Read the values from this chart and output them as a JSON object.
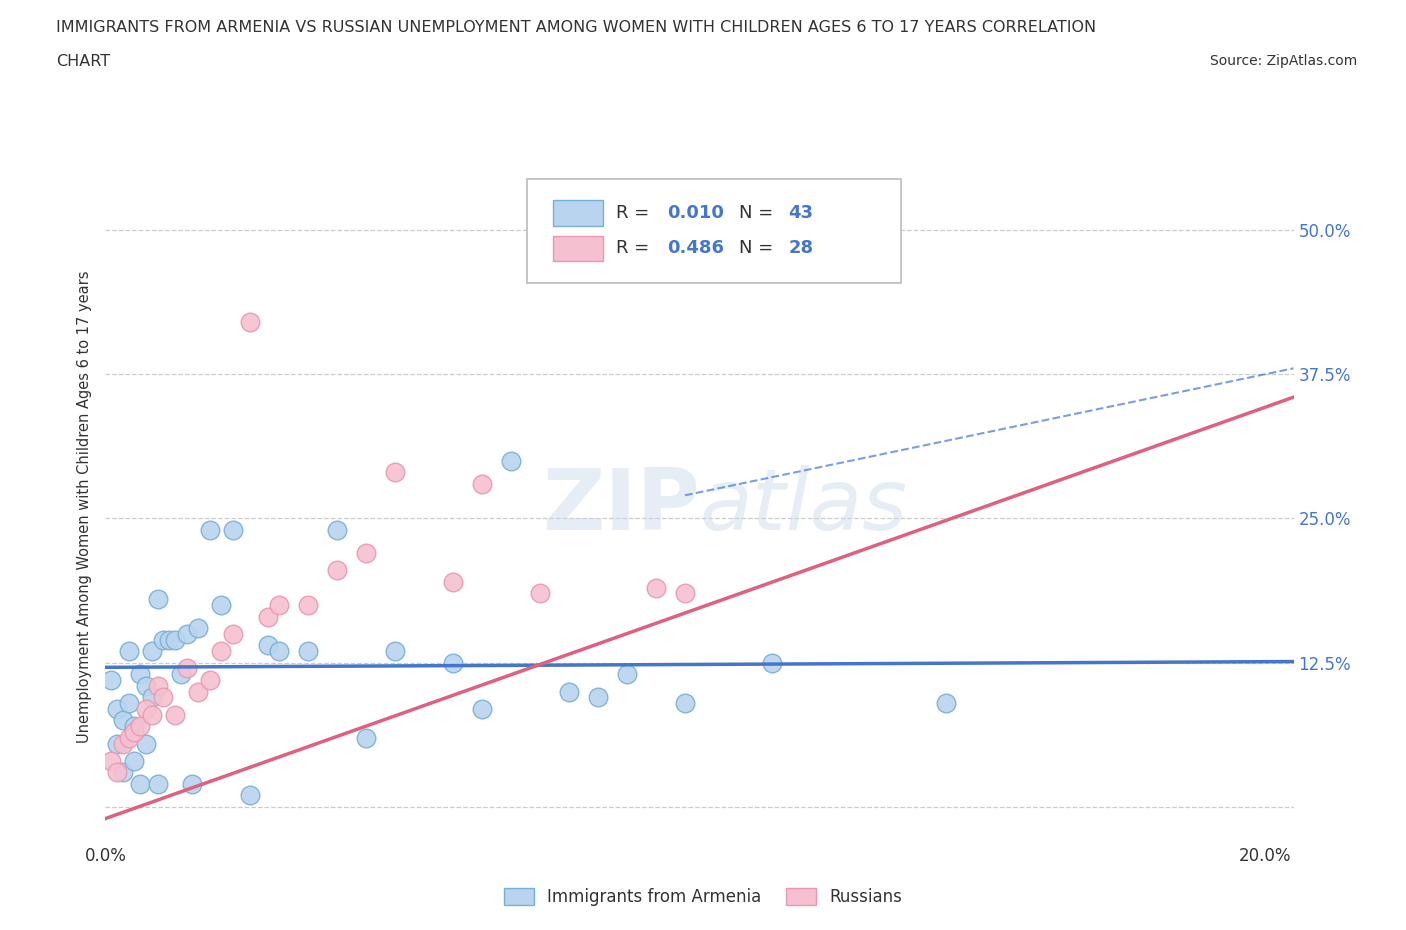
{
  "title_line1": "IMMIGRANTS FROM ARMENIA VS RUSSIAN UNEMPLOYMENT AMONG WOMEN WITH CHILDREN AGES 6 TO 17 YEARS CORRELATION",
  "title_line2": "CHART",
  "source": "Source: ZipAtlas.com",
  "ylabel": "Unemployment Among Women with Children Ages 6 to 17 years",
  "xlim": [
    0.0,
    0.205
  ],
  "ylim": [
    -0.03,
    0.55
  ],
  "xtick_positions": [
    0.0,
    0.025,
    0.05,
    0.075,
    0.1,
    0.125,
    0.15,
    0.175,
    0.2
  ],
  "xtick_labels": [
    "0.0%",
    "",
    "",
    "",
    "",
    "",
    "",
    "",
    "20.0%"
  ],
  "ytick_positions": [
    0.0,
    0.125,
    0.25,
    0.375,
    0.5
  ],
  "ytick_labels_right": [
    "",
    "12.5%",
    "25.0%",
    "37.5%",
    "50.0%"
  ],
  "grid_color": "#cccccc",
  "background_color": "#ffffff",
  "armenia_face_color": "#b8d4ee",
  "armenia_edge_color": "#7aafd4",
  "russia_face_color": "#f5c0d0",
  "russia_edge_color": "#e898b0",
  "armenia_line_color": "#4477cc",
  "russia_line_color": "#e06080",
  "armenia_R": "0.010",
  "armenia_N": 43,
  "russia_R": "0.486",
  "russia_N": 28,
  "text_color": "#333333",
  "blue_text_color": "#4477cc",
  "watermark_color": "#d0dce8",
  "armenia_line_y0": 0.121,
  "armenia_line_y1": 0.126,
  "russia_line_y0": -0.01,
  "russia_line_y1": 0.355,
  "armenia_x": [
    0.001,
    0.002,
    0.002,
    0.003,
    0.003,
    0.004,
    0.004,
    0.005,
    0.005,
    0.006,
    0.006,
    0.007,
    0.007,
    0.008,
    0.008,
    0.009,
    0.009,
    0.01,
    0.011,
    0.012,
    0.013,
    0.014,
    0.015,
    0.016,
    0.018,
    0.02,
    0.022,
    0.025,
    0.028,
    0.03,
    0.035,
    0.04,
    0.045,
    0.05,
    0.06,
    0.065,
    0.07,
    0.08,
    0.085,
    0.09,
    0.1,
    0.115,
    0.145
  ],
  "armenia_y": [
    0.11,
    0.055,
    0.085,
    0.03,
    0.075,
    0.09,
    0.135,
    0.04,
    0.07,
    0.02,
    0.115,
    0.105,
    0.055,
    0.095,
    0.135,
    0.18,
    0.02,
    0.145,
    0.145,
    0.145,
    0.115,
    0.15,
    0.02,
    0.155,
    0.24,
    0.175,
    0.24,
    0.01,
    0.14,
    0.135,
    0.135,
    0.24,
    0.06,
    0.135,
    0.125,
    0.085,
    0.3,
    0.1,
    0.095,
    0.115,
    0.09,
    0.125,
    0.09
  ],
  "russia_x": [
    0.001,
    0.002,
    0.003,
    0.004,
    0.005,
    0.006,
    0.007,
    0.008,
    0.009,
    0.01,
    0.012,
    0.014,
    0.016,
    0.018,
    0.02,
    0.022,
    0.025,
    0.028,
    0.03,
    0.035,
    0.04,
    0.045,
    0.05,
    0.06,
    0.065,
    0.075,
    0.095,
    0.1
  ],
  "russia_y": [
    0.04,
    0.03,
    0.055,
    0.06,
    0.065,
    0.07,
    0.085,
    0.08,
    0.105,
    0.095,
    0.08,
    0.12,
    0.1,
    0.11,
    0.135,
    0.15,
    0.42,
    0.165,
    0.175,
    0.175,
    0.205,
    0.22,
    0.29,
    0.195,
    0.28,
    0.185,
    0.19,
    0.185
  ]
}
